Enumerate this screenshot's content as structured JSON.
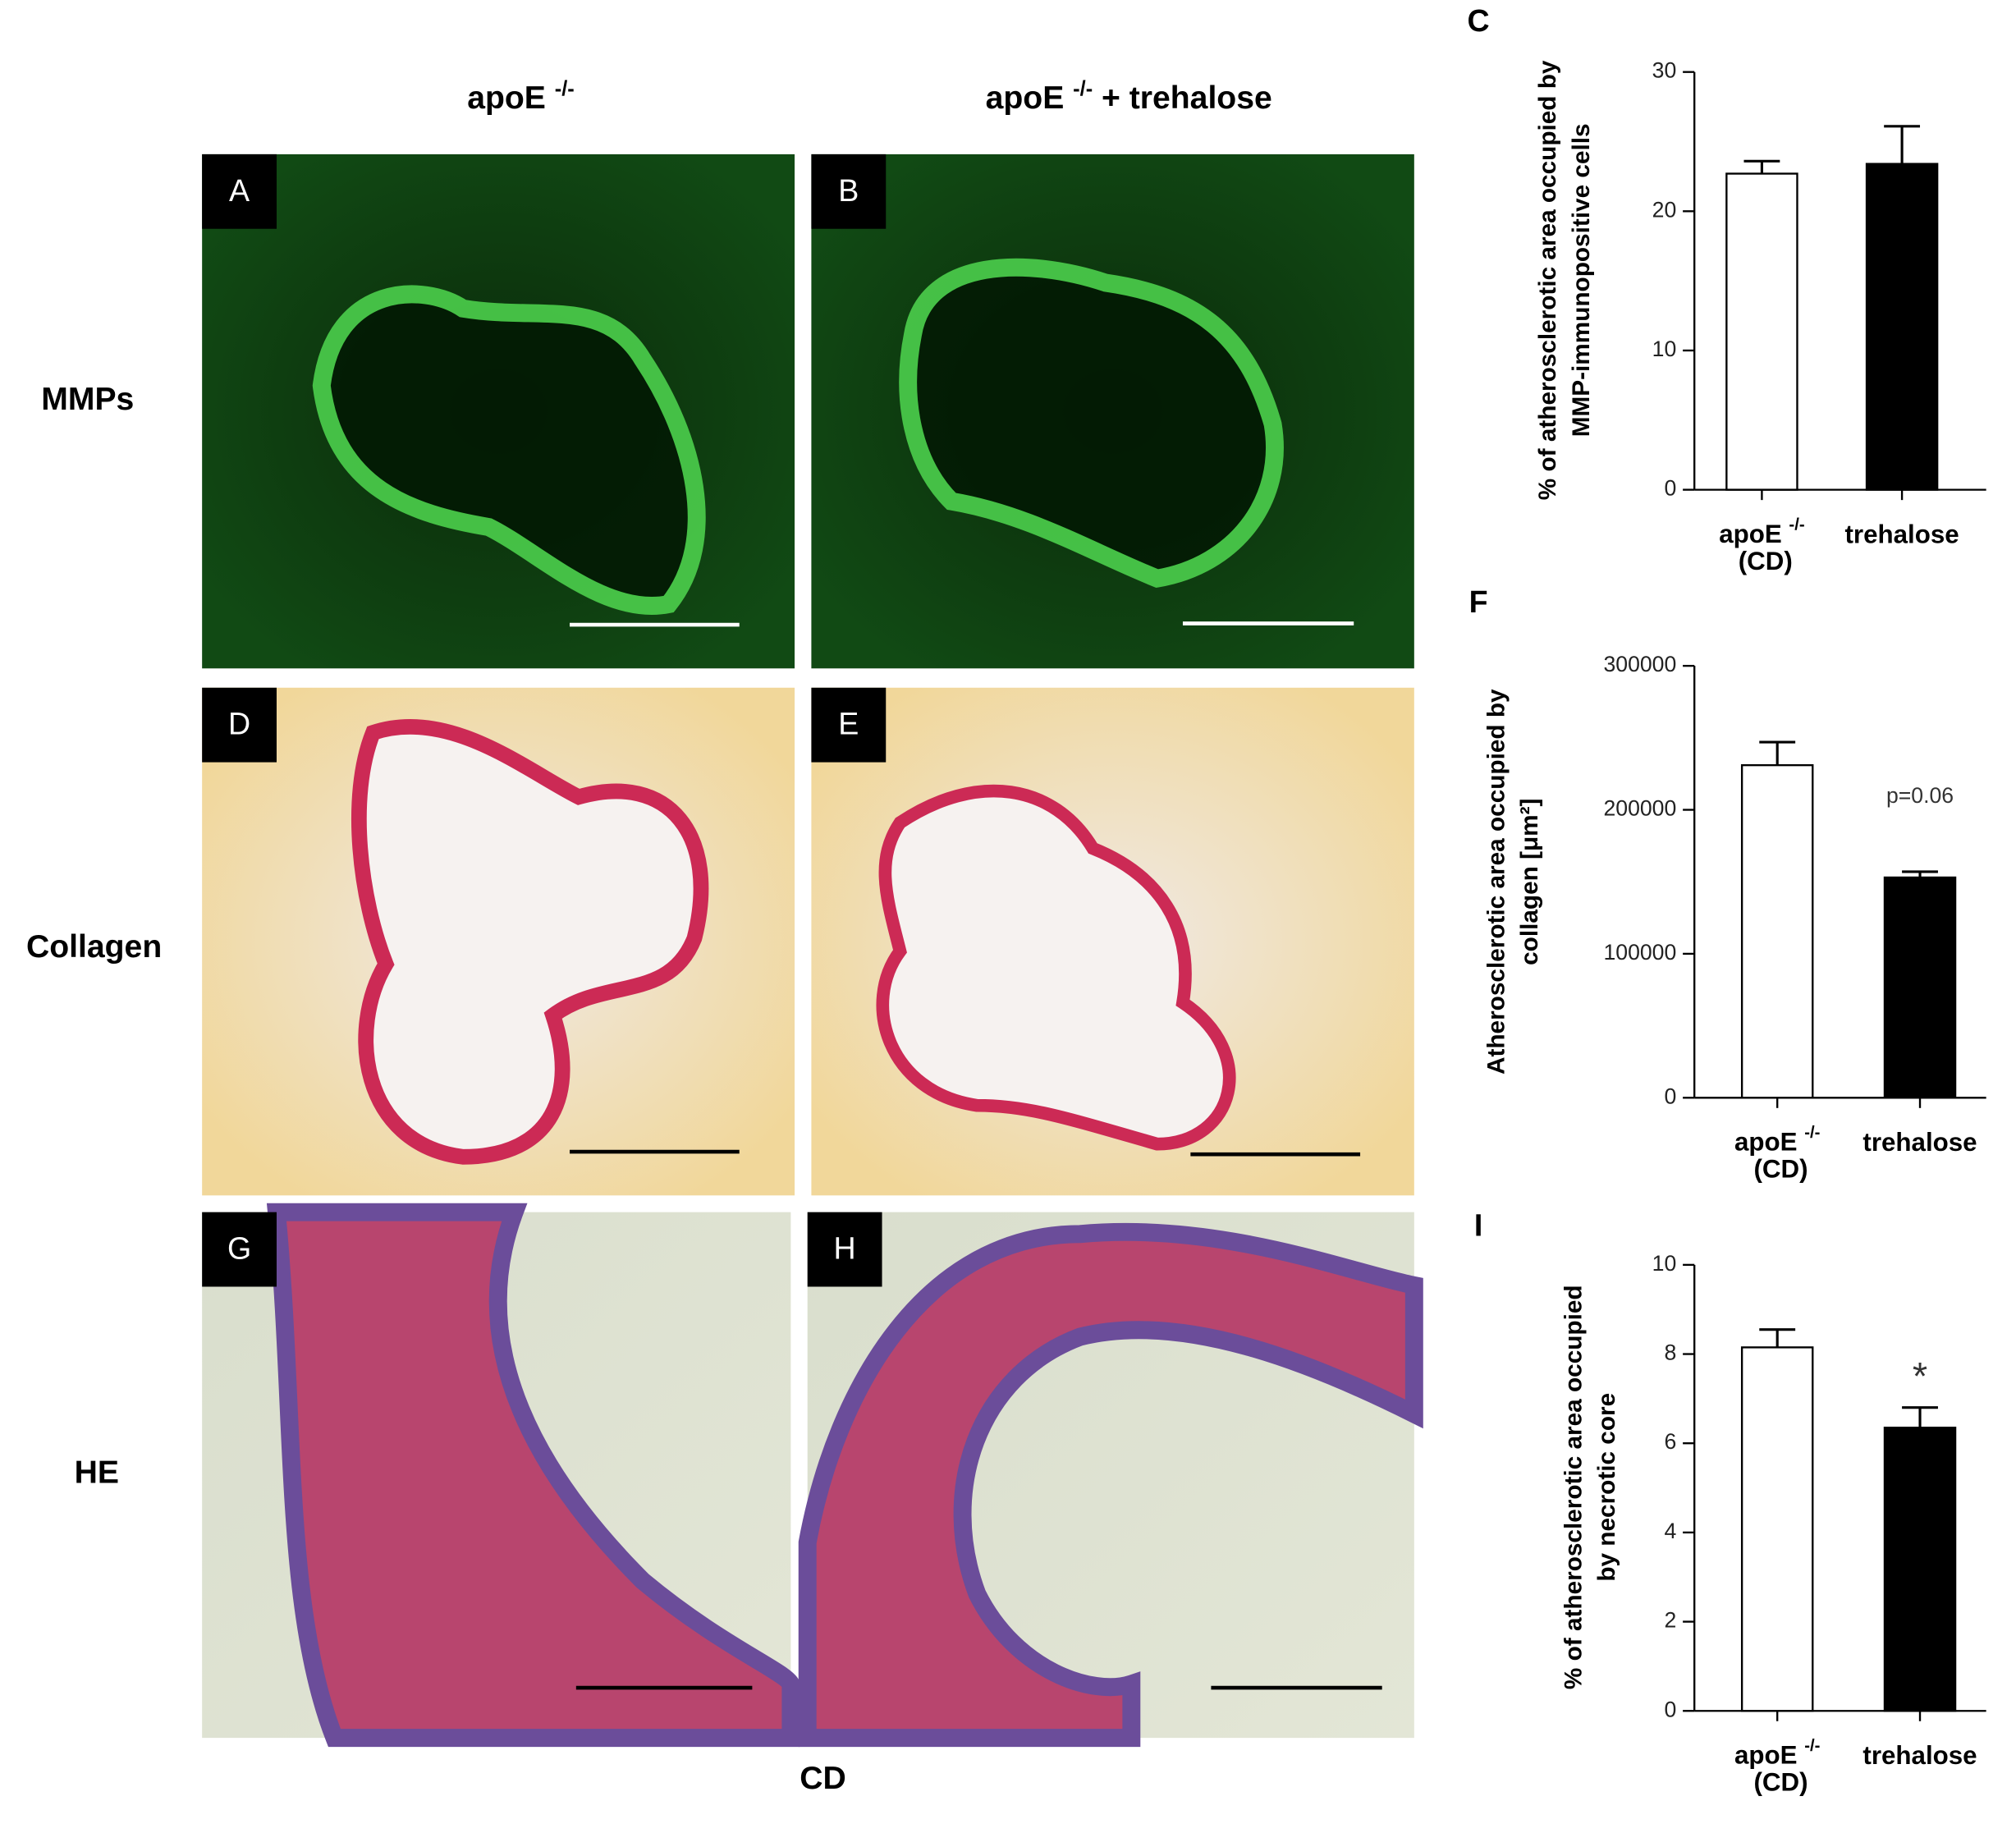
{
  "figure": {
    "column_headers": [
      "apoE -/-",
      "apoE -/- + trehalose"
    ],
    "row_labels": [
      "MMPs",
      "Collagen",
      "HE"
    ],
    "panels": [
      "A",
      "B",
      "D",
      "E",
      "G",
      "H"
    ],
    "footer": "CD"
  },
  "chart_data": [
    {
      "type": "bar",
      "panel": "C",
      "ylabel": [
        "% of atherosclerotic area occupied by",
        "MMP-immunopositive cells"
      ],
      "categories": [
        "apoE -/- (CD)",
        "trehalose"
      ],
      "values": [
        22.7,
        23.4
      ],
      "errors": [
        0.9,
        2.7
      ],
      "colors": [
        "#ffffff",
        "#000000"
      ],
      "ylim": [
        0,
        30
      ],
      "yticks": [
        0,
        10,
        20,
        30
      ]
    },
    {
      "type": "bar",
      "panel": "F",
      "ylabel": [
        "Atherosclerotic area occupied by",
        "collagen [μm²]"
      ],
      "categories": [
        "apoE -/- (CD)",
        "trehalose"
      ],
      "values": [
        231000,
        153000
      ],
      "errors": [
        16000,
        4000
      ],
      "colors": [
        "#ffffff",
        "#000000"
      ],
      "ylim": [
        0,
        300000
      ],
      "yticks": [
        0,
        100000,
        200000,
        300000
      ],
      "annotation": "p=0.06"
    },
    {
      "type": "bar",
      "panel": "I",
      "ylabel": [
        "% of atherosclerotic area occupied",
        "by necrotic core"
      ],
      "categories": [
        "apoE -/- (CD)",
        "trehalose"
      ],
      "values": [
        8.15,
        6.35
      ],
      "errors": [
        0.4,
        0.45
      ],
      "colors": [
        "#ffffff",
        "#000000"
      ],
      "ylim": [
        0,
        10
      ],
      "yticks": [
        0,
        2,
        4,
        6,
        8,
        10
      ],
      "annotation": "*"
    }
  ]
}
